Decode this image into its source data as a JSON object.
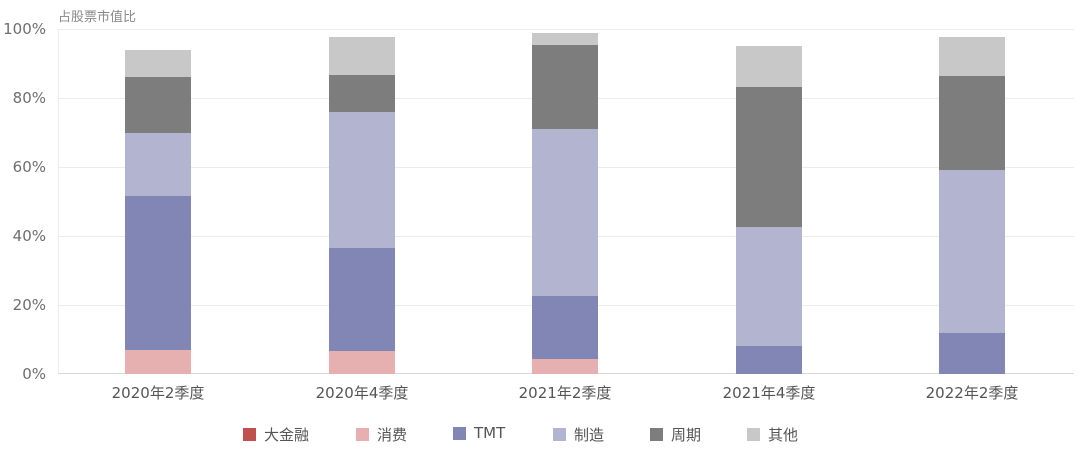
{
  "chart_data": {
    "type": "bar",
    "stacked": true,
    "title": "",
    "ylabel": "占股票市值比",
    "xlabel": "",
    "ylim": [
      0,
      100
    ],
    "yticks": [
      "0%",
      "20%",
      "40%",
      "60%",
      "80%",
      "100%"
    ],
    "grid": true,
    "legend_position": "bottom",
    "categories": [
      "2020年2季度",
      "2020年4季度",
      "2021年2季度",
      "2021年4季度",
      "2022年2季度"
    ],
    "series": [
      {
        "name": "大金融",
        "color": "#c0504d",
        "values": [
          0,
          0,
          0,
          0,
          0
        ]
      },
      {
        "name": "消费",
        "color": "#e6b0b0",
        "values": [
          7.0,
          6.7,
          4.3,
          0,
          0
        ]
      },
      {
        "name": "TMT",
        "color": "#8286b4",
        "values": [
          44.5,
          29.8,
          18.3,
          8.1,
          11.9
        ]
      },
      {
        "name": "制造",
        "color": "#b2b4d0",
        "values": [
          18.5,
          39.5,
          48.4,
          34.5,
          47.2
        ]
      },
      {
        "name": "周期",
        "color": "#7d7d7d",
        "values": [
          16.0,
          10.7,
          24.4,
          40.6,
          27.3
        ]
      },
      {
        "name": "其他",
        "color": "#c8c8c8",
        "values": [
          8.0,
          11.0,
          3.4,
          11.9,
          11.3
        ]
      }
    ]
  },
  "axis": {
    "y_title": "占股票市值比",
    "y_ticks": [
      "100%",
      "80%",
      "60%",
      "40%",
      "20%",
      "0%"
    ]
  },
  "legend": {
    "items": [
      "大金融",
      "消费",
      "TMT",
      "制造",
      "周期",
      "其他"
    ]
  }
}
